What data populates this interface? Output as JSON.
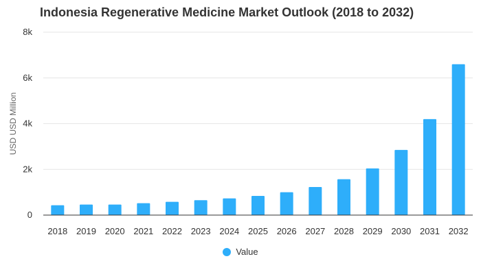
{
  "chart_data": {
    "type": "bar",
    "title": "Indonesia Regenerative Medicine Market Outlook (2018 to 2032)",
    "ylabel": "USD USD Million",
    "xlabel": "",
    "categories": [
      "2018",
      "2019",
      "2020",
      "2021",
      "2022",
      "2023",
      "2024",
      "2025",
      "2026",
      "2027",
      "2028",
      "2029",
      "2030",
      "2031",
      "2032"
    ],
    "series": [
      {
        "name": "Value",
        "values": [
          430,
          460,
          460,
          520,
          580,
          650,
          730,
          840,
          1000,
          1230,
          1570,
          2040,
          2850,
          4200,
          6600
        ]
      }
    ],
    "ylim": [
      0,
      8000
    ],
    "yticks": [
      {
        "value": 0,
        "label": "0"
      },
      {
        "value": 2000,
        "label": "2k"
      },
      {
        "value": 4000,
        "label": "4k"
      },
      {
        "value": 6000,
        "label": "6k"
      },
      {
        "value": 8000,
        "label": "8k"
      }
    ],
    "grid": true,
    "legend_position": "bottom-center",
    "colors": {
      "bar": "#2EAEFA",
      "grid": "#E6E6E6",
      "axis": "#333333",
      "text": "#333333"
    }
  }
}
